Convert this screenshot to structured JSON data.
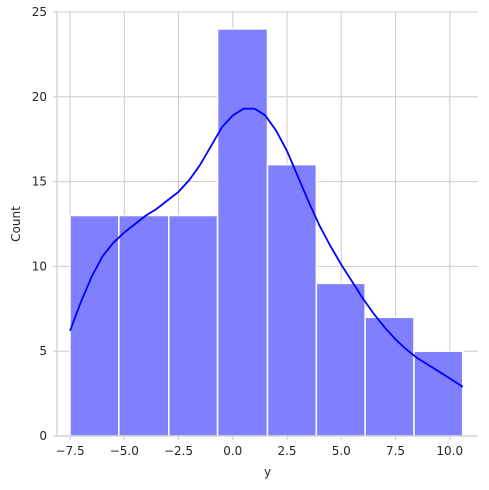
{
  "chart_data": {
    "type": "bar",
    "subtype": "histogram-with-kde",
    "xlabel": "y",
    "ylabel": "Count",
    "xlim": [
      -8.1,
      11.3
    ],
    "ylim": [
      0,
      25
    ],
    "xticks": [
      -7.5,
      -5.0,
      -2.5,
      0.0,
      2.5,
      5.0,
      7.5,
      10.0
    ],
    "xtick_labels": [
      "−7.5",
      "−5.0",
      "−2.5",
      "0.0",
      "2.5",
      "5.0",
      "7.5",
      "10.0"
    ],
    "yticks": [
      0,
      5,
      10,
      15,
      20,
      25
    ],
    "ytick_labels": [
      "0",
      "5",
      "10",
      "15",
      "20",
      "25"
    ],
    "grid": true,
    "bin_edges": [
      -7.5,
      -5.25,
      -2.95,
      -0.7,
      1.6,
      3.85,
      6.1,
      8.35,
      10.6
    ],
    "counts": [
      13,
      13,
      13,
      24,
      16,
      9,
      7,
      5
    ],
    "bar_color": "#8080ff",
    "bar_edge_color": "#ffffff",
    "kde": {
      "color": "#0000ff",
      "x": [
        -7.5,
        -7.0,
        -6.5,
        -6.0,
        -5.5,
        -5.0,
        -4.5,
        -4.0,
        -3.5,
        -3.0,
        -2.5,
        -2.0,
        -1.5,
        -1.0,
        -0.5,
        0.0,
        0.5,
        1.0,
        1.5,
        2.0,
        2.5,
        3.0,
        3.5,
        4.0,
        4.5,
        5.0,
        5.5,
        6.0,
        6.5,
        7.0,
        7.5,
        8.0,
        8.5,
        9.0,
        9.5,
        10.0,
        10.6
      ],
      "y": [
        6.2,
        7.9,
        9.4,
        10.6,
        11.4,
        12.0,
        12.5,
        13.0,
        13.4,
        13.9,
        14.4,
        15.1,
        16.0,
        17.1,
        18.2,
        18.9,
        19.3,
        19.3,
        18.9,
        18.0,
        16.8,
        15.3,
        13.8,
        12.4,
        11.2,
        10.1,
        9.1,
        8.1,
        7.2,
        6.4,
        5.7,
        5.1,
        4.6,
        4.2,
        3.8,
        3.4,
        2.9
      ]
    }
  }
}
